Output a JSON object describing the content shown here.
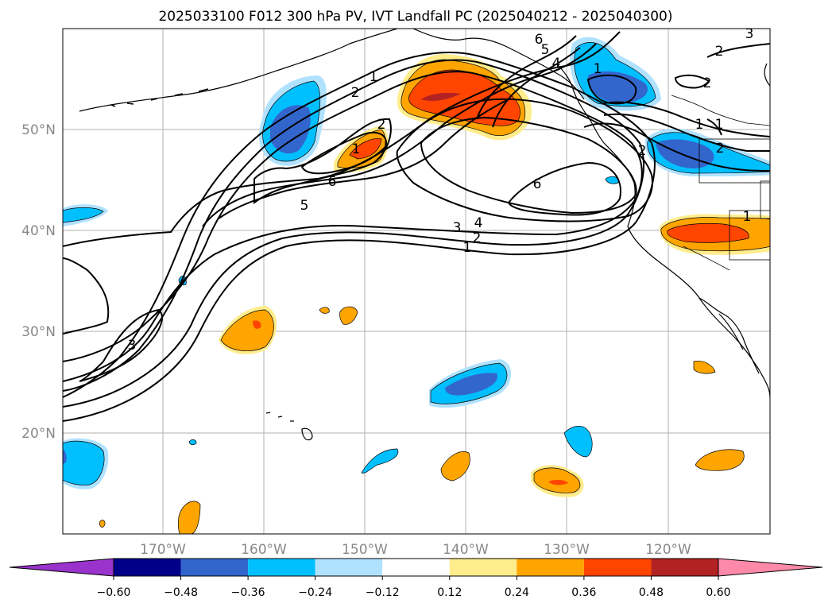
{
  "title": "2025033100 F012 300 hPa PV, IVT Landfall PC (2025040212 - 2025040300)",
  "map": {
    "lat_ticks": [
      "50°N",
      "40°N",
      "30°N",
      "20°N"
    ],
    "lon_ticks": [
      "170°W",
      "160°W",
      "150°W",
      "140°W",
      "130°W",
      "120°W"
    ],
    "contour_labels": [
      "1",
      "2",
      "1",
      "2",
      "6",
      "5",
      "6",
      "5",
      "1",
      "1",
      "6",
      "4",
      "3",
      "2",
      "1",
      "3",
      "2",
      "2",
      "1",
      "3",
      "1",
      "2",
      "2",
      "4"
    ],
    "axis_color": "#888888"
  },
  "colorbar": {
    "tick_labels": [
      "−0.60",
      "−0.48",
      "−0.36",
      "−0.24",
      "−0.12",
      "0.12",
      "0.24",
      "0.36",
      "0.48",
      "0.60"
    ],
    "colors": {
      "under": "#9933cc",
      "bins": [
        "#00008b",
        "#3366cc",
        "#00bfff",
        "#b0e2ff",
        "#ffffff",
        "#ffec8b",
        "#ffa500",
        "#ff4500",
        "#b22222"
      ],
      "over": "#ff89a8"
    }
  },
  "fill_colors": {
    "neg_light": "#b0e2ff",
    "neg_mid": "#00bfff",
    "neg_strong": "#3366cc",
    "pos_light": "#ffec8b",
    "pos_mid": "#ffa500",
    "pos_strong": "#ff4500",
    "pos_max": "#b22222"
  }
}
